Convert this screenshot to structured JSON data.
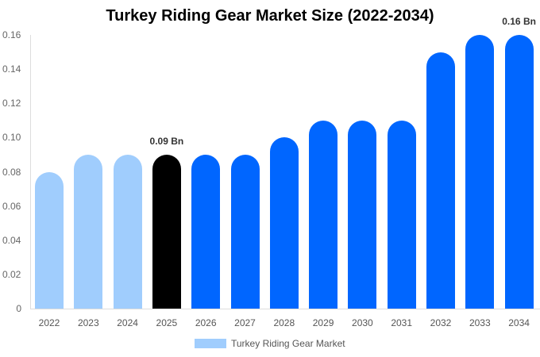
{
  "chart_data": {
    "type": "bar",
    "title": "Turkey Riding Gear Market Size (2022-2034)",
    "xlabel": "",
    "ylabel": "",
    "categories": [
      "2022",
      "2023",
      "2024",
      "2025",
      "2026",
      "2027",
      "2028",
      "2029",
      "2030",
      "2031",
      "2032",
      "2033",
      "2034"
    ],
    "series": [
      {
        "name": "Turkey Riding Gear Market",
        "values": [
          0.08,
          0.09,
          0.09,
          0.09,
          0.09,
          0.09,
          0.1,
          0.11,
          0.11,
          0.11,
          0.15,
          0.16,
          0.16
        ]
      }
    ],
    "ylim": [
      0,
      0.16
    ],
    "y_ticks": [
      "0",
      "0.02",
      "0.04",
      "0.06",
      "0.08",
      "0.10",
      "0.12",
      "0.14",
      "0.16"
    ],
    "grid": false,
    "legend_position": "bottom",
    "annotations": [
      {
        "category": "2025",
        "text": "0.09 Bn"
      },
      {
        "category": "2034",
        "text": "0.16 Bn"
      }
    ],
    "bar_colors": {
      "historical": "#a0cdfd",
      "current": "#000000",
      "forecast": "#0066ff"
    },
    "bar_color_groups": [
      "historical",
      "historical",
      "historical",
      "current",
      "forecast",
      "forecast",
      "forecast",
      "forecast",
      "forecast",
      "forecast",
      "forecast",
      "forecast",
      "forecast"
    ]
  },
  "legend": {
    "label": "Turkey Riding Gear Market",
    "color": "#a0cdfd"
  }
}
